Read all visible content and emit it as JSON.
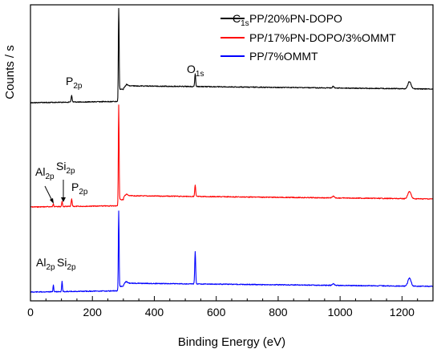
{
  "chart_data": {
    "type": "line",
    "title": "",
    "xlabel": "Binding Energy (eV)",
    "ylabel": "Counts / s",
    "xlim": [
      0,
      1300
    ],
    "xticks": [
      0,
      200,
      400,
      600,
      800,
      1000,
      1200
    ],
    "yticks_shown": false,
    "grid": false,
    "legend_position": "top-right",
    "series": [
      {
        "name": "PP/20%PN-DOPO",
        "color": "#000000",
        "peaks": [
          {
            "energy": 133,
            "label": "P",
            "sub": "2p"
          },
          {
            "energy": 285,
            "label": "C",
            "sub": "1s"
          },
          {
            "energy": 532,
            "label": "O",
            "sub": "1s"
          }
        ]
      },
      {
        "name": "PP/17%PN-DOPO/3%OMMT",
        "color": "#ff0000",
        "peaks": [
          {
            "energy": 74,
            "label": "Al",
            "sub": "2p"
          },
          {
            "energy": 102,
            "label": "Si",
            "sub": "2p"
          },
          {
            "energy": 133,
            "label": "P",
            "sub": "2p"
          }
        ]
      },
      {
        "name": "PP/7%OMMT",
        "color": "#0000ff",
        "peaks": [
          {
            "energy": 74,
            "label": "Al",
            "sub": "2p"
          },
          {
            "energy": 102,
            "label": "Si",
            "sub": "2p"
          }
        ]
      }
    ]
  }
}
